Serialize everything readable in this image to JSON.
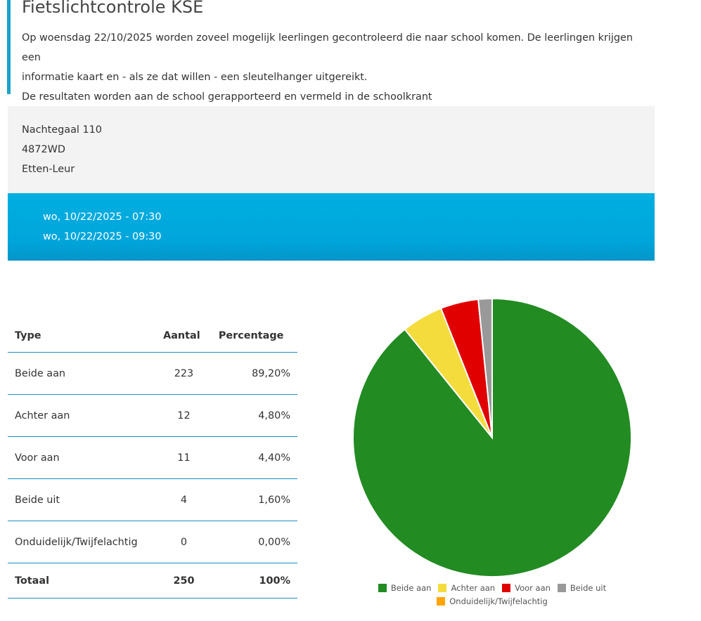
{
  "header": {
    "title": "Fietslichtcontrole KSE",
    "paragraph_line1": "Op woensdag 22/10/2025 worden zoveel mogelijk leerlingen gecontroleerd die naar school komen. De leerlingen krijgen een",
    "paragraph_line2": "informatie kaart en - als ze dat willen - een sleutelhanger uitgereikt.",
    "paragraph_line3": "De resultaten worden aan de school gerapporteerd en vermeld in de schoolkrant"
  },
  "address": {
    "street": "Nachtegaal 110",
    "postcode": "4872WD",
    "city": "Etten-Leur"
  },
  "times": {
    "start": "wo, 10/22/2025 - 07:30",
    "end": "wo, 10/22/2025 - 09:30"
  },
  "table": {
    "headers": [
      "Type",
      "Aantal",
      "Percentage"
    ],
    "rows": [
      {
        "type": "Beide aan",
        "count": "223",
        "pct": "89,20%"
      },
      {
        "type": "Achter aan",
        "count": "12",
        "pct": "4,80%"
      },
      {
        "type": "Voor aan",
        "count": "11",
        "pct": "4,40%"
      },
      {
        "type": "Beide uit",
        "count": "4",
        "pct": "1,60%"
      },
      {
        "type": "Onduidelijk/Twijfelachtig",
        "count": "0",
        "pct": "0,00%"
      }
    ],
    "total": {
      "type": "Totaal",
      "count": "250",
      "pct": "100%"
    }
  },
  "chart_data": {
    "type": "pie",
    "categories": [
      "Beide aan",
      "Achter aan",
      "Voor aan",
      "Beide uit",
      "Onduidelijk/Twijfelachtig"
    ],
    "values": [
      223,
      12,
      11,
      4,
      0
    ],
    "colors": [
      "#228b22",
      "#f4dc3c",
      "#e00000",
      "#999999",
      "#ffa500"
    ],
    "legend_position": "bottom"
  }
}
